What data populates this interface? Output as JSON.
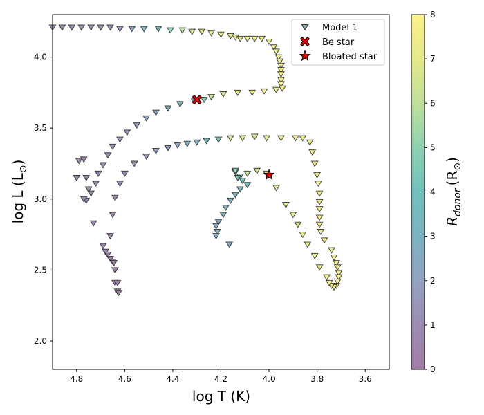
{
  "chart_data": {
    "type": "scatter",
    "xlabel": "log T (K)",
    "ylabel": "log L (L",
    "ylabel_sub": "⊙",
    "xlim": [
      4.9,
      3.5
    ],
    "ylim": [
      1.8,
      4.3
    ],
    "x_ticks": [
      4.8,
      4.6,
      4.4,
      4.2,
      4.0,
      3.8,
      3.6
    ],
    "x_tick_labels": [
      "4.8",
      "4.6",
      "4.4",
      "4.2",
      "4.0",
      "3.8",
      "3.6"
    ],
    "y_ticks": [
      2.0,
      2.5,
      3.0,
      3.5,
      4.0
    ],
    "y_tick_labels": [
      "2.0",
      "2.5",
      "3.0",
      "3.5",
      "4.0"
    ],
    "colorbar": {
      "label": "R",
      "label_sub": "donor",
      "label_suffix": "(R",
      "label_suffix_sub": "⊙",
      "min": 0,
      "max": 8,
      "ticks": [
        0,
        1,
        2,
        3,
        4,
        5,
        6,
        7,
        8
      ],
      "tick_labels": [
        "0",
        "1",
        "2",
        "3",
        "4",
        "5",
        "6",
        "7",
        "8"
      ]
    },
    "legend": {
      "position": "top-right",
      "entries": [
        "Model 1",
        "Be star",
        "Bloated star"
      ]
    },
    "series": [
      {
        "name": "Model 1",
        "marker": "triangle-down",
        "points": [
          [
            4.9,
            4.21,
            1.0
          ],
          [
            4.86,
            4.21,
            1.0
          ],
          [
            4.82,
            4.21,
            1.1
          ],
          [
            4.78,
            4.21,
            1.1
          ],
          [
            4.74,
            4.21,
            1.2
          ],
          [
            4.7,
            4.21,
            1.3
          ],
          [
            4.66,
            4.21,
            1.4
          ],
          [
            4.62,
            4.2,
            1.6
          ],
          [
            4.57,
            4.2,
            2.2
          ],
          [
            4.52,
            4.2,
            3.0
          ],
          [
            4.46,
            4.2,
            3.5
          ],
          [
            4.41,
            4.19,
            5.0
          ],
          [
            4.36,
            4.19,
            6.0
          ],
          [
            4.32,
            4.18,
            6.5
          ],
          [
            4.28,
            4.18,
            7.0
          ],
          [
            4.24,
            4.17,
            7.0
          ],
          [
            4.2,
            4.16,
            7.2
          ],
          [
            4.16,
            4.15,
            7.2
          ],
          [
            4.14,
            4.14,
            7.3
          ],
          [
            4.12,
            4.13,
            7.3
          ],
          [
            4.09,
            4.13,
            7.4
          ],
          [
            4.06,
            4.13,
            7.4
          ],
          [
            4.03,
            4.13,
            7.5
          ],
          [
            4.0,
            4.11,
            7.5
          ],
          [
            3.98,
            4.07,
            7.6
          ],
          [
            3.97,
            4.04,
            7.6
          ],
          [
            3.96,
            4.0,
            7.7
          ],
          [
            3.955,
            3.97,
            7.7
          ],
          [
            3.95,
            3.94,
            7.7
          ],
          [
            3.95,
            3.91,
            7.7
          ],
          [
            3.95,
            3.88,
            7.7
          ],
          [
            3.95,
            3.84,
            7.7
          ],
          [
            3.95,
            3.81,
            7.7
          ],
          [
            3.945,
            3.78,
            7.7
          ],
          [
            3.97,
            3.77,
            7.6
          ],
          [
            4.02,
            3.76,
            7.4
          ],
          [
            4.07,
            3.75,
            7.2
          ],
          [
            4.13,
            3.75,
            7.0
          ],
          [
            4.19,
            3.74,
            6.8
          ],
          [
            4.24,
            3.72,
            6.2
          ],
          [
            4.27,
            3.7,
            5.0
          ],
          [
            4.31,
            3.69,
            3.5
          ],
          [
            4.37,
            3.67,
            3.0
          ],
          [
            4.42,
            3.64,
            2.6
          ],
          [
            4.47,
            3.61,
            2.2
          ],
          [
            4.51,
            3.57,
            2.0
          ],
          [
            4.55,
            3.52,
            1.8
          ],
          [
            4.59,
            3.47,
            1.6
          ],
          [
            4.62,
            3.42,
            1.5
          ],
          [
            4.65,
            3.37,
            1.4
          ],
          [
            4.67,
            3.31,
            1.3
          ],
          [
            4.69,
            3.24,
            1.2
          ],
          [
            4.71,
            3.18,
            1.1
          ],
          [
            4.72,
            3.11,
            1.0
          ],
          [
            4.74,
            3.04,
            1.0
          ],
          [
            4.76,
            2.99,
            0.9
          ],
          [
            4.77,
            3.0,
            0.9
          ],
          [
            4.75,
            3.07,
            0.9
          ],
          [
            4.76,
            3.15,
            0.9
          ],
          [
            4.8,
            3.15,
            0.8
          ],
          [
            4.79,
            3.27,
            0.8
          ],
          [
            4.77,
            3.28,
            0.8
          ],
          [
            4.73,
            2.83,
            0.7
          ],
          [
            4.69,
            2.67,
            0.6
          ],
          [
            4.68,
            2.63,
            0.5
          ],
          [
            4.67,
            2.61,
            0.4
          ],
          [
            4.66,
            2.58,
            0.3
          ],
          [
            4.65,
            2.56,
            0.2
          ],
          [
            4.645,
            2.55,
            0.1
          ],
          [
            4.64,
            2.5,
            0.3
          ],
          [
            4.64,
            2.41,
            0.3
          ],
          [
            4.63,
            2.41,
            0.2
          ],
          [
            4.63,
            2.35,
            0.1
          ],
          [
            4.625,
            2.34,
            0.1
          ],
          [
            4.66,
            2.74,
            0.6
          ],
          [
            4.65,
            2.89,
            0.7
          ],
          [
            4.64,
            3.01,
            0.8
          ],
          [
            4.62,
            3.11,
            0.9
          ],
          [
            4.6,
            3.18,
            1.2
          ],
          [
            4.56,
            3.25,
            1.5
          ],
          [
            4.51,
            3.3,
            1.8
          ],
          [
            4.47,
            3.34,
            2.0
          ],
          [
            4.42,
            3.36,
            2.2
          ],
          [
            4.38,
            3.38,
            2.4
          ],
          [
            4.34,
            3.39,
            2.8
          ],
          [
            4.3,
            3.4,
            3.0
          ],
          [
            4.26,
            3.41,
            3.5
          ],
          [
            4.21,
            3.42,
            4.5
          ],
          [
            4.16,
            3.43,
            6.5
          ],
          [
            4.11,
            3.43,
            7.0
          ],
          [
            4.06,
            3.44,
            7.2
          ],
          [
            4.01,
            3.43,
            7.3
          ],
          [
            3.95,
            3.43,
            7.4
          ],
          [
            3.89,
            3.43,
            7.5
          ],
          [
            3.86,
            3.43,
            7.5
          ],
          [
            3.83,
            3.4,
            7.6
          ],
          [
            3.82,
            3.33,
            7.6
          ],
          [
            3.81,
            3.25,
            7.7
          ],
          [
            3.8,
            3.17,
            7.7
          ],
          [
            3.795,
            3.11,
            7.7
          ],
          [
            3.79,
            3.04,
            7.7
          ],
          [
            3.79,
            2.98,
            7.7
          ],
          [
            3.79,
            2.93,
            7.7
          ],
          [
            3.79,
            2.87,
            7.7
          ],
          [
            3.79,
            2.82,
            7.7
          ],
          [
            3.785,
            2.77,
            7.7
          ],
          [
            3.77,
            2.71,
            7.7
          ],
          [
            3.74,
            2.64,
            7.7
          ],
          [
            3.73,
            2.59,
            7.7
          ],
          [
            3.72,
            2.55,
            7.7
          ],
          [
            3.715,
            2.52,
            7.7
          ],
          [
            3.71,
            2.48,
            7.7
          ],
          [
            3.71,
            2.45,
            7.7
          ],
          [
            3.715,
            2.42,
            7.7
          ],
          [
            3.72,
            2.39,
            7.7
          ],
          [
            3.73,
            2.38,
            7.7
          ],
          [
            3.74,
            2.39,
            7.7
          ],
          [
            3.75,
            2.41,
            7.7
          ],
          [
            3.76,
            2.45,
            7.6
          ],
          [
            3.79,
            2.52,
            7.5
          ],
          [
            3.81,
            2.6,
            7.4
          ],
          [
            3.84,
            2.68,
            7.3
          ],
          [
            3.86,
            2.75,
            7.2
          ],
          [
            3.88,
            2.82,
            7.1
          ],
          [
            3.9,
            2.89,
            7.0
          ],
          [
            3.93,
            2.96,
            7.0
          ],
          [
            3.97,
            3.08,
            7.0
          ],
          [
            4.01,
            3.18,
            7.0
          ],
          [
            4.05,
            3.2,
            6.5
          ],
          [
            4.09,
            3.18,
            6.0
          ],
          [
            4.12,
            3.16,
            5.0
          ],
          [
            4.14,
            3.19,
            4.0
          ],
          [
            4.14,
            3.2,
            5.0
          ],
          [
            4.13,
            3.15,
            4.5
          ],
          [
            4.11,
            3.13,
            4.0
          ],
          [
            4.09,
            3.1,
            3.8
          ],
          [
            4.12,
            3.07,
            3.5
          ],
          [
            4.14,
            3.03,
            3.2
          ],
          [
            4.16,
            2.99,
            3.0
          ],
          [
            4.18,
            2.94,
            2.8
          ],
          [
            4.19,
            2.89,
            2.7
          ],
          [
            4.21,
            2.84,
            2.6
          ],
          [
            4.22,
            2.81,
            2.5
          ],
          [
            4.215,
            2.77,
            2.5
          ],
          [
            4.22,
            2.74,
            2.5
          ],
          [
            4.165,
            2.68,
            3.0
          ]
        ]
      },
      {
        "name": "Be star",
        "marker": "X",
        "color": "#e60000",
        "points": [
          [
            4.3,
            3.7
          ]
        ]
      },
      {
        "name": "Bloated star",
        "marker": "star",
        "color": "#e60000",
        "points": [
          [
            4.0,
            3.17
          ]
        ]
      }
    ]
  }
}
